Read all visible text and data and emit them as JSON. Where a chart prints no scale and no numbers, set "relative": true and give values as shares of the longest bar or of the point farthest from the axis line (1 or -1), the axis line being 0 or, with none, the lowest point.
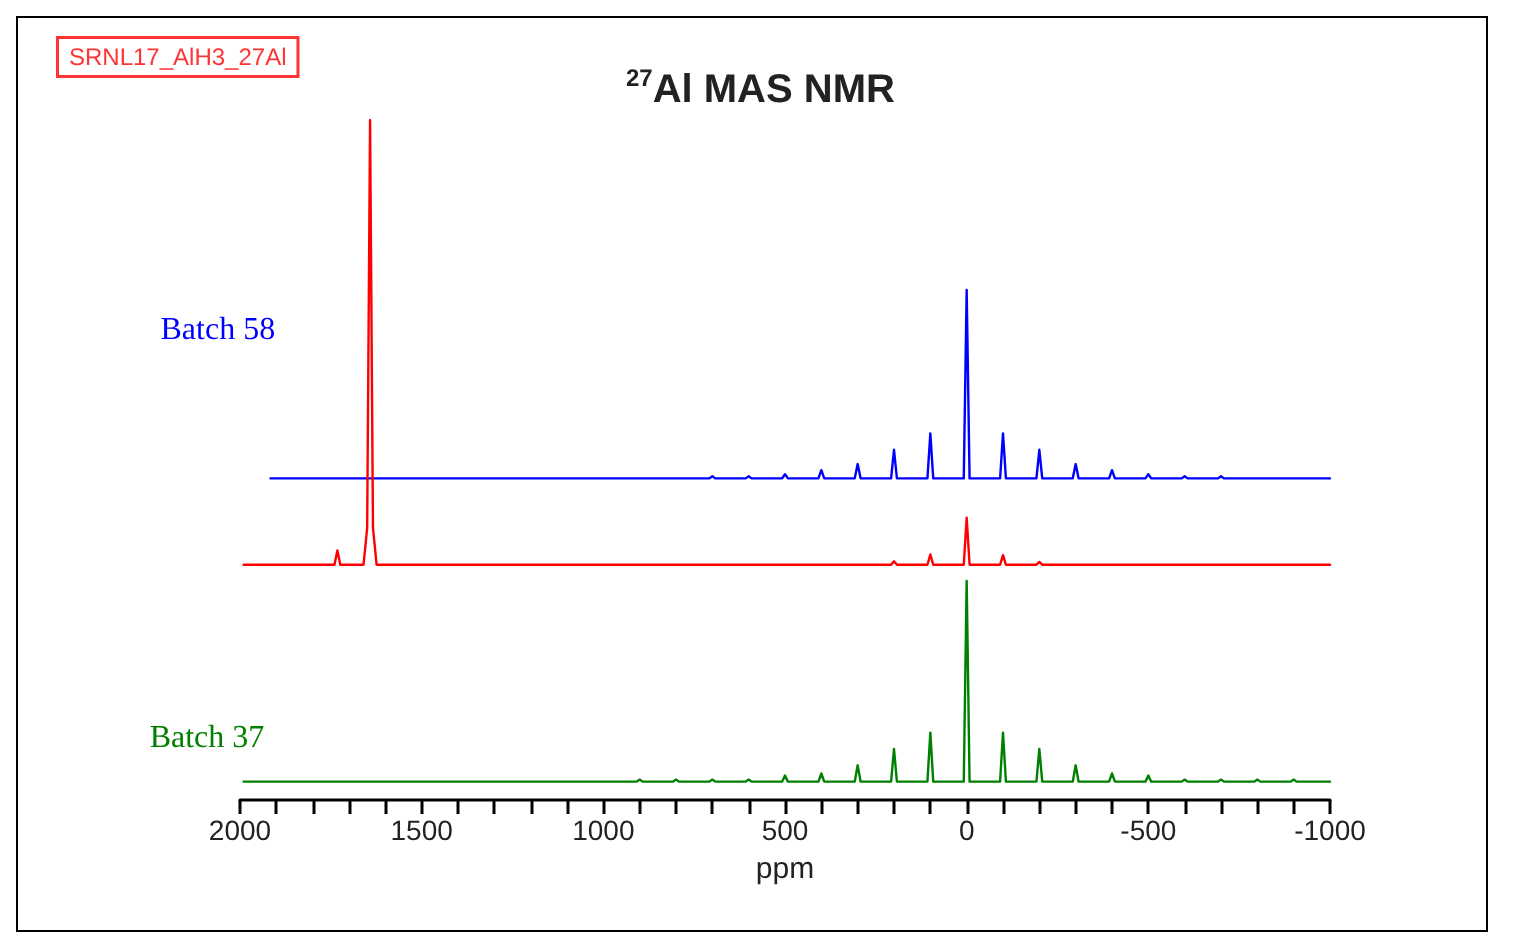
{
  "chart_data": {
    "type": "line",
    "title": "$^{27}$Al MAS NMR",
    "xlabel": "ppm",
    "relative": true,
    "annotations": [
      "SRNL17_AlH3_27Al"
    ],
    "xlim": [
      2000,
      -1000
    ],
    "xticks": [
      2000,
      {
        "value": 1900,
        "label": null
      },
      {
        "value": 1800,
        "label": null
      },
      {
        "value": 1700,
        "label": null
      },
      {
        "value": 1600,
        "label": null
      },
      1500,
      {
        "value": 1400,
        "label": null
      },
      {
        "value": 1300,
        "label": null
      },
      {
        "value": 1200,
        "label": null
      },
      {
        "value": 1100,
        "label": null
      },
      1000,
      {
        "value": 900,
        "label": null
      },
      {
        "value": 800,
        "label": null
      },
      {
        "value": 700,
        "label": null
      },
      {
        "value": 600,
        "label": null
      },
      500,
      {
        "value": 400,
        "label": null
      },
      {
        "value": 300,
        "label": null
      },
      {
        "value": 200,
        "label": null
      },
      {
        "value": 100,
        "label": null
      },
      0,
      {
        "value": -100,
        "label": null
      },
      {
        "value": -200,
        "label": null
      },
      {
        "value": -300,
        "label": null
      },
      {
        "value": -400,
        "label": null
      },
      -500,
      {
        "value": -600,
        "label": null
      },
      {
        "value": -700,
        "label": null
      },
      {
        "value": -800,
        "label": null
      },
      {
        "value": -900,
        "label": null
      },
      -1000
    ],
    "series": [
      {
        "name": "Batch 58",
        "color": "#0000ff",
        "x": [
          1916,
          708,
          700,
          692,
          608,
          600,
          592,
          508,
          500,
          492,
          408,
          400,
          392,
          308,
          300,
          292,
          208,
          200,
          192,
          108,
          100,
          92,
          8,
          0,
          -8,
          -92,
          -100,
          -108,
          -192,
          -200,
          -208,
          -292,
          -300,
          -308,
          -392,
          -400,
          -408,
          -492,
          -500,
          -508,
          -592,
          -600,
          -608,
          -692,
          -700,
          -708,
          -1000
        ],
        "values": [
          0.473,
          0.473,
          0.476,
          0.473,
          0.473,
          0.476,
          0.473,
          0.473,
          0.479,
          0.473,
          0.473,
          0.485,
          0.473,
          0.473,
          0.494,
          0.473,
          0.473,
          0.515,
          0.473,
          0.473,
          0.539,
          0.473,
          0.473,
          0.75,
          0.473,
          0.473,
          0.539,
          0.473,
          0.473,
          0.515,
          0.473,
          0.473,
          0.494,
          0.473,
          0.473,
          0.485,
          0.473,
          0.473,
          0.479,
          0.473,
          0.473,
          0.476,
          0.473,
          0.473,
          0.476,
          0.473,
          0.473
        ]
      },
      {
        "color": "#ff0000",
        "x": [
          1990,
          1740,
          1732,
          1724,
          1660,
          1650,
          1642,
          1634,
          1624,
          208,
          200,
          192,
          108,
          100,
          92,
          8,
          0,
          -8,
          -92,
          -100,
          -108,
          -192,
          -200,
          -208,
          -1000
        ],
        "values": [
          0.346,
          0.346,
          0.367,
          0.346,
          0.346,
          0.4,
          1.0,
          0.4,
          0.346,
          0.346,
          0.351,
          0.346,
          0.346,
          0.361,
          0.346,
          0.346,
          0.415,
          0.346,
          0.346,
          0.36,
          0.346,
          0.346,
          0.35,
          0.346,
          0.346
        ]
      },
      {
        "name": "Batch 37",
        "color": "#008000",
        "x": [
          1990,
          908,
          900,
          892,
          808,
          800,
          792,
          708,
          700,
          692,
          608,
          600,
          592,
          508,
          500,
          492,
          408,
          400,
          392,
          308,
          300,
          292,
          208,
          200,
          192,
          108,
          100,
          92,
          8,
          0,
          -8,
          -92,
          -100,
          -108,
          -192,
          -200,
          -208,
          -292,
          -300,
          -308,
          -392,
          -400,
          -408,
          -492,
          -500,
          -508,
          -592,
          -600,
          -608,
          -692,
          -700,
          -708,
          -792,
          -800,
          -808,
          -892,
          -900,
          -908,
          -1000
        ],
        "values": [
          0.027,
          0.027,
          0.03,
          0.027,
          0.027,
          0.03,
          0.027,
          0.027,
          0.03,
          0.027,
          0.027,
          0.03,
          0.027,
          0.027,
          0.036,
          0.027,
          0.027,
          0.039,
          0.027,
          0.027,
          0.051,
          0.027,
          0.027,
          0.075,
          0.027,
          0.027,
          0.099,
          0.027,
          0.027,
          0.322,
          0.027,
          0.027,
          0.099,
          0.027,
          0.027,
          0.075,
          0.027,
          0.027,
          0.051,
          0.027,
          0.027,
          0.039,
          0.027,
          0.027,
          0.036,
          0.027,
          0.027,
          0.03,
          0.027,
          0.027,
          0.03,
          0.027,
          0.027,
          0.03,
          0.027,
          0.027,
          0.03,
          0.027,
          0.027
        ]
      }
    ]
  }
}
